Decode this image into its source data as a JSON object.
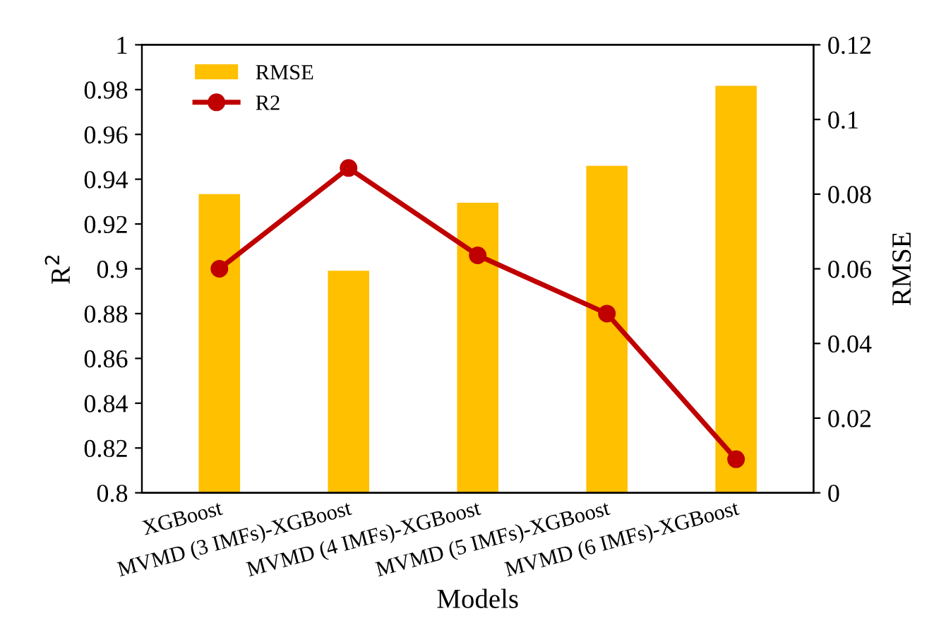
{
  "chart_data": {
    "type": "bar",
    "xlabel": "Models",
    "ylabel": "R$^{2}$",
    "y2label": "RMSE",
    "categories": [
      "XGBoost",
      "MVMD (3 IMFs)-XGBoost",
      "MVMD (4 IMFs)-XGBoost",
      "MVMD (5 IMFs)-XGBoost",
      "MVMD (6 IMFs)-XGBoost"
    ],
    "series": [
      {
        "name": "RMSE",
        "axis": "y2",
        "color": "#ffc000",
        "values": [
          0.08,
          0.0595,
          0.0777,
          0.0876,
          0.109
        ]
      },
      {
        "name": "R2",
        "type": "line",
        "axis": "y",
        "color": "#c00000",
        "marker": "circle",
        "values": [
          0.9,
          0.945,
          0.906,
          0.88,
          0.815
        ]
      }
    ],
    "ylim": [
      0.8,
      1
    ],
    "yticks": [
      {
        "value": 0.8,
        "label": "0.8"
      },
      0.82,
      0.84,
      0.86,
      0.88,
      {
        "value": 0.9,
        "label": "0.9"
      },
      0.92,
      0.94,
      0.96,
      0.98,
      1
    ],
    "y2lim": [
      0,
      0.12
    ],
    "y2ticks": [
      0,
      0.02,
      0.04,
      0.06,
      0.08,
      {
        "value": 0.1,
        "label": "0.1"
      },
      0.12
    ],
    "grid": false,
    "legend": "top left"
  }
}
